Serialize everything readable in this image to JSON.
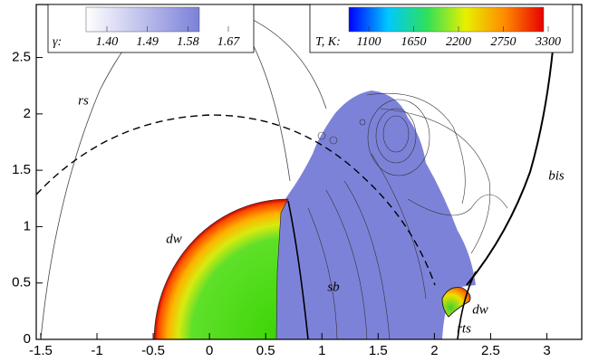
{
  "chart_data": {
    "type": "contour",
    "xlim": [
      -1.54,
      3.31
    ],
    "ylim": [
      0,
      2.97
    ],
    "xticks": [
      -1.5,
      -1,
      -0.5,
      0,
      0.5,
      1,
      1.5,
      2,
      2.5,
      3
    ],
    "yticks": [
      0,
      0.5,
      1,
      1.5,
      2,
      2.5
    ],
    "annotations": [
      "rs",
      "dw",
      "sb",
      "bis",
      "dw",
      "rts"
    ],
    "colorbars": [
      {
        "label": "γ:",
        "clim": [
          1.4,
          1.67
        ],
        "colors": [
          "#ffffff",
          "#7b80d8"
        ],
        "ticks": [
          {
            "value": 1.4,
            "label": "1.40"
          },
          {
            "value": 1.49,
            "label": "1.49"
          },
          {
            "value": 1.58,
            "label": "1.58"
          },
          {
            "value": 1.67,
            "label": "1.67"
          }
        ]
      },
      {
        "label": "T, K:",
        "clim": [
          1100,
          3300
        ],
        "colors": [
          "#0000ff",
          "#00c8ff",
          "#2ee05a",
          "#e8f000",
          "#ff8a00",
          "#e80000"
        ],
        "ticks": [
          1100,
          1650,
          2200,
          2750,
          3300
        ]
      }
    ]
  }
}
